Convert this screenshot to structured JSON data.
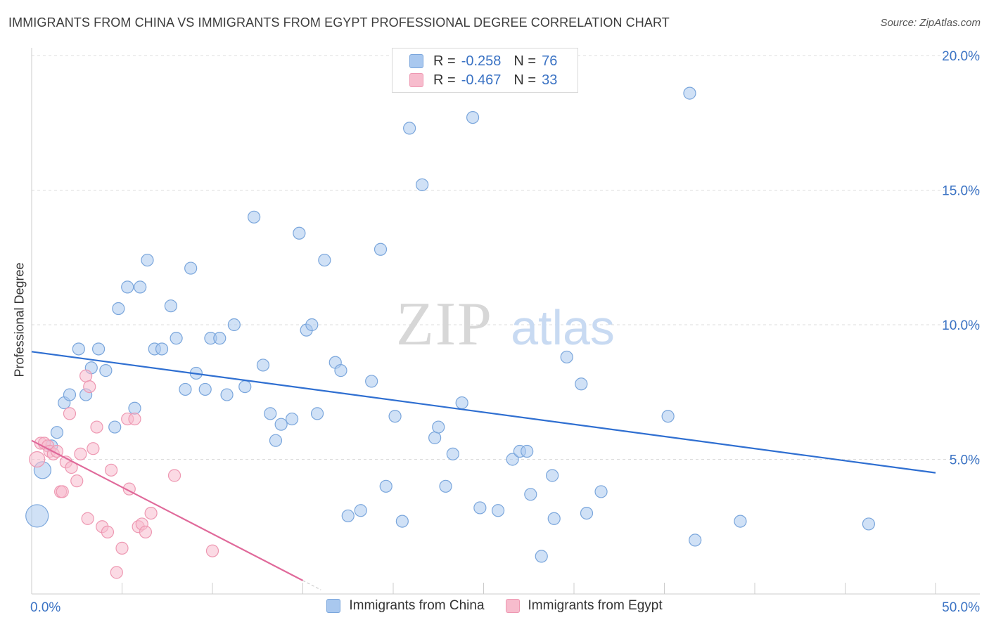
{
  "title": "IMMIGRANTS FROM CHINA VS IMMIGRANTS FROM EGYPT PROFESSIONAL DEGREE CORRELATION CHART",
  "source": "Source: ZipAtlas.com",
  "watermark": {
    "zip": "ZIP",
    "atlas": "atlas"
  },
  "legend": {
    "china": {
      "r_label": "R =",
      "r_value": "-0.258",
      "n_label": "N =",
      "n_value": "76"
    },
    "egypt": {
      "r_label": "R =",
      "r_value": "-0.467",
      "n_label": "N =",
      "n_value": "33"
    }
  },
  "colors": {
    "china_fill": "#a9c8ef",
    "china_stroke": "#7aa6dc",
    "china_line": "#2f6fd1",
    "egypt_fill": "#f7bccd",
    "egypt_stroke": "#ee98b2",
    "egypt_line": "#e0699a",
    "grid": "#dcdcdc",
    "tick_label": "#3b73c4"
  },
  "chart_data": {
    "type": "scatter",
    "title": "IMMIGRANTS FROM CHINA VS IMMIGRANTS FROM EGYPT PROFESSIONAL DEGREE CORRELATION CHART",
    "xlabel": "",
    "ylabel": "Professional Degree",
    "xlim": [
      0,
      50
    ],
    "ylim": [
      0,
      20
    ],
    "x_tick_labels": [
      "0.0%",
      "50.0%"
    ],
    "y_ticks": [
      {
        "value": 5,
        "label": "5.0%"
      },
      {
        "value": 10,
        "label": "10.0%"
      },
      {
        "value": 15,
        "label": "15.0%"
      },
      {
        "value": 20,
        "label": "20.0%"
      }
    ],
    "series": [
      {
        "name": "Immigrants from China",
        "key": "china",
        "trend": {
          "x": [
            0,
            50
          ],
          "y": [
            9.0,
            4.5
          ]
        },
        "points": [
          [
            0.3,
            2.9,
            4
          ],
          [
            0.6,
            4.6,
            3
          ],
          [
            1.1,
            5.5,
            1
          ],
          [
            1.4,
            6.0,
            1
          ],
          [
            1.8,
            7.1,
            1
          ],
          [
            2.1,
            7.4,
            1
          ],
          [
            2.6,
            9.1,
            1
          ],
          [
            3.0,
            7.4,
            1
          ],
          [
            3.3,
            8.4,
            1
          ],
          [
            3.7,
            9.1,
            1
          ],
          [
            4.1,
            8.3,
            1
          ],
          [
            4.6,
            6.2,
            1
          ],
          [
            4.8,
            10.6,
            1
          ],
          [
            5.3,
            11.4,
            1
          ],
          [
            5.7,
            6.9,
            1
          ],
          [
            6.0,
            11.4,
            1
          ],
          [
            6.4,
            12.4,
            1
          ],
          [
            6.8,
            9.1,
            1
          ],
          [
            7.2,
            9.1,
            1
          ],
          [
            7.7,
            10.7,
            1
          ],
          [
            8.0,
            9.5,
            1
          ],
          [
            8.5,
            7.6,
            1
          ],
          [
            8.8,
            12.1,
            1
          ],
          [
            9.1,
            8.2,
            1
          ],
          [
            9.6,
            7.6,
            1
          ],
          [
            9.9,
            9.5,
            1
          ],
          [
            10.4,
            9.5,
            1
          ],
          [
            10.8,
            7.4,
            1
          ],
          [
            11.2,
            10.0,
            1
          ],
          [
            11.8,
            7.7,
            1
          ],
          [
            12.3,
            14.0,
            1
          ],
          [
            12.8,
            8.5,
            1
          ],
          [
            13.2,
            6.7,
            1
          ],
          [
            13.5,
            5.7,
            1
          ],
          [
            13.8,
            6.3,
            1
          ],
          [
            14.4,
            6.5,
            1
          ],
          [
            14.8,
            13.4,
            1
          ],
          [
            15.2,
            9.8,
            1
          ],
          [
            15.5,
            10.0,
            1
          ],
          [
            15.8,
            6.7,
            1
          ],
          [
            16.2,
            12.4,
            1
          ],
          [
            16.8,
            8.6,
            1
          ],
          [
            17.1,
            8.3,
            1
          ],
          [
            17.5,
            2.9,
            1
          ],
          [
            18.2,
            3.1,
            1
          ],
          [
            18.8,
            7.9,
            1
          ],
          [
            19.3,
            12.8,
            1
          ],
          [
            19.6,
            4.0,
            1
          ],
          [
            20.1,
            6.6,
            1
          ],
          [
            20.5,
            2.7,
            1
          ],
          [
            20.9,
            17.3,
            1
          ],
          [
            21.6,
            15.2,
            1
          ],
          [
            22.3,
            5.8,
            1
          ],
          [
            22.5,
            6.2,
            1
          ],
          [
            22.9,
            4.0,
            1
          ],
          [
            23.3,
            5.2,
            1
          ],
          [
            23.8,
            7.1,
            1
          ],
          [
            24.4,
            17.7,
            1
          ],
          [
            24.8,
            3.2,
            1
          ],
          [
            25.8,
            3.1,
            1
          ],
          [
            26.6,
            5.0,
            1
          ],
          [
            27.0,
            5.3,
            1
          ],
          [
            27.4,
            5.3,
            1
          ],
          [
            27.6,
            3.7,
            1
          ],
          [
            28.2,
            1.4,
            1
          ],
          [
            28.8,
            4.4,
            1
          ],
          [
            28.9,
            2.8,
            1
          ],
          [
            29.6,
            8.8,
            1
          ],
          [
            30.4,
            7.8,
            1
          ],
          [
            30.7,
            3.0,
            1
          ],
          [
            31.5,
            3.8,
            1
          ],
          [
            35.2,
            6.6,
            1
          ],
          [
            36.4,
            18.6,
            1
          ],
          [
            36.7,
            2.0,
            1
          ],
          [
            39.2,
            2.7,
            1
          ],
          [
            46.3,
            2.6,
            1
          ]
        ]
      },
      {
        "name": "Immigrants from Egypt",
        "key": "egypt",
        "trend": {
          "x": [
            0,
            15
          ],
          "y": [
            5.7,
            0.5
          ]
        },
        "points": [
          [
            0.3,
            5.0,
            2
          ],
          [
            0.5,
            5.6,
            1
          ],
          [
            0.7,
            5.6,
            1
          ],
          [
            0.9,
            5.5,
            1
          ],
          [
            1.0,
            5.3,
            1
          ],
          [
            1.2,
            5.2,
            1
          ],
          [
            1.4,
            5.3,
            1
          ],
          [
            1.6,
            3.8,
            1
          ],
          [
            1.7,
            3.8,
            1
          ],
          [
            1.9,
            4.9,
            1
          ],
          [
            2.1,
            6.7,
            1
          ],
          [
            2.2,
            4.7,
            1
          ],
          [
            2.5,
            4.2,
            1
          ],
          [
            2.7,
            5.2,
            1
          ],
          [
            3.0,
            8.1,
            1
          ],
          [
            3.1,
            2.8,
            1
          ],
          [
            3.2,
            7.7,
            1
          ],
          [
            3.4,
            5.4,
            1
          ],
          [
            3.6,
            6.2,
            1
          ],
          [
            3.9,
            2.5,
            1
          ],
          [
            4.2,
            2.3,
            1
          ],
          [
            4.4,
            4.6,
            1
          ],
          [
            4.7,
            0.8,
            1
          ],
          [
            5.0,
            1.7,
            1
          ],
          [
            5.3,
            6.5,
            1
          ],
          [
            5.4,
            3.9,
            1
          ],
          [
            5.7,
            6.5,
            1
          ],
          [
            5.9,
            2.5,
            1
          ],
          [
            6.1,
            2.6,
            1
          ],
          [
            6.3,
            2.3,
            1
          ],
          [
            6.6,
            3.0,
            1
          ],
          [
            7.9,
            4.4,
            1
          ],
          [
            10.0,
            1.6,
            1
          ]
        ]
      }
    ]
  },
  "bottom_legend": {
    "china_label": "Immigrants from China",
    "egypt_label": "Immigrants from Egypt"
  }
}
